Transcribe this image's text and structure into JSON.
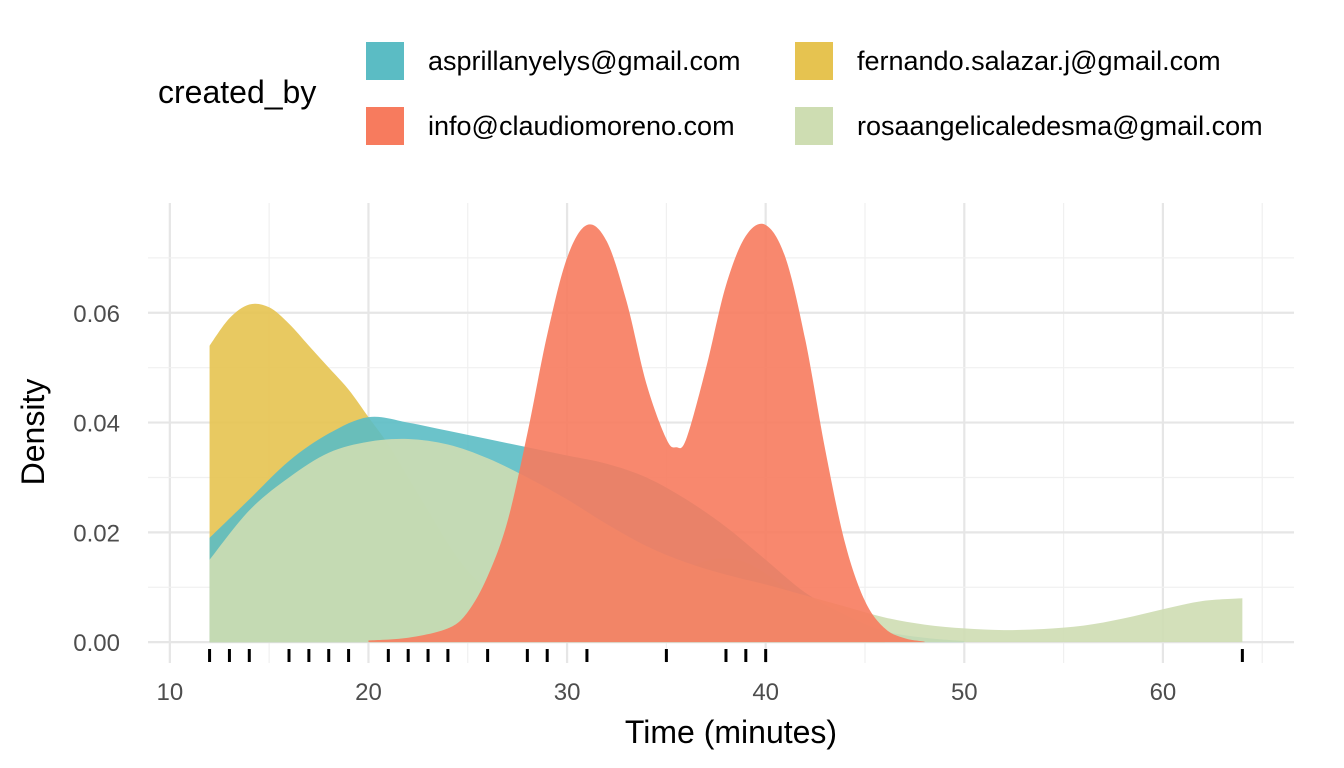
{
  "legend": {
    "title": "created_by",
    "items": [
      {
        "label": "asprillanyelys@gmail.com",
        "color": "#5BBCC4"
      },
      {
        "label": "fernando.salazar.j@gmail.com",
        "color": "#E6C350"
      },
      {
        "label": "info@claudiomoreno.com",
        "color": "#F77B5E"
      },
      {
        "label": "rosaangelicaledesma@gmail.com",
        "color": "#CEDDB2"
      }
    ]
  },
  "chart_data": {
    "type": "area",
    "xlabel": "Time (minutes)",
    "ylabel": "Density",
    "xlim": [
      8.9,
      66.6
    ],
    "ylim": [
      -0.0038,
      0.08
    ],
    "x_ticks": [
      10,
      20,
      30,
      40,
      50,
      60
    ],
    "y_ticks": [
      0.0,
      0.02,
      0.04,
      0.06
    ],
    "y_tick_labels": [
      "0.00",
      "0.02",
      "0.04",
      "0.06"
    ],
    "grid": true,
    "legend_position": "top",
    "rug": [
      12,
      13,
      14,
      16,
      17,
      18,
      19,
      21,
      22,
      23,
      24,
      26,
      28,
      29,
      31,
      35,
      38,
      39,
      40,
      64
    ],
    "series": [
      {
        "name": "fernando.salazar.j@gmail.com",
        "color": "#E6C350",
        "x": [
          12,
          13,
          14,
          15,
          16,
          17,
          18,
          19,
          20,
          21,
          22,
          23,
          24,
          25,
          26,
          27,
          28,
          29,
          30,
          31,
          32,
          33,
          34,
          35,
          36,
          37,
          38,
          39,
          40,
          41,
          42,
          43,
          44,
          45,
          46
        ],
        "y": [
          0.054,
          0.059,
          0.0615,
          0.061,
          0.058,
          0.054,
          0.05,
          0.046,
          0.041,
          0.036,
          0.03,
          0.024,
          0.018,
          0.013,
          0.0095,
          0.0068,
          0.0052,
          0.0043,
          0.0038,
          0.0038,
          0.0045,
          0.0062,
          0.0085,
          0.011,
          0.0133,
          0.0148,
          0.0153,
          0.0145,
          0.0125,
          0.0098,
          0.007,
          0.0045,
          0.0025,
          0.0012,
          0.0005
        ]
      },
      {
        "name": "asprillanyelys@gmail.com",
        "color": "#5BBCC4",
        "x": [
          12,
          14,
          16,
          18,
          20,
          22,
          24,
          26,
          28,
          30,
          32,
          34,
          36,
          38,
          40,
          42,
          44,
          46,
          48,
          50
        ],
        "y": [
          0.019,
          0.026,
          0.033,
          0.038,
          0.041,
          0.04,
          0.0385,
          0.037,
          0.0355,
          0.034,
          0.0325,
          0.03,
          0.026,
          0.021,
          0.015,
          0.009,
          0.005,
          0.002,
          0.0008,
          0.0002
        ]
      },
      {
        "name": "rosaangelicaledesma@gmail.com",
        "color": "#CEDDB2",
        "x": [
          12,
          14,
          16,
          18,
          20,
          22,
          24,
          26,
          28,
          30,
          32,
          34,
          36,
          38,
          40,
          42,
          44,
          46,
          48,
          50,
          52,
          54,
          56,
          58,
          60,
          62,
          64
        ],
        "y": [
          0.015,
          0.024,
          0.03,
          0.0345,
          0.0365,
          0.037,
          0.036,
          0.0335,
          0.03,
          0.026,
          0.0215,
          0.0175,
          0.0145,
          0.0123,
          0.0105,
          0.0085,
          0.0065,
          0.0045,
          0.0032,
          0.0025,
          0.0022,
          0.0024,
          0.003,
          0.0043,
          0.006,
          0.0075,
          0.008
        ]
      },
      {
        "name": "info@claudiomoreno.com",
        "color": "#F77B5E",
        "x": [
          20,
          22,
          24,
          25,
          26,
          27,
          28,
          29,
          30,
          31,
          32,
          33,
          34,
          35,
          35.5,
          36,
          37,
          38,
          39,
          40,
          41,
          42,
          43,
          44,
          45,
          46,
          47,
          48
        ],
        "y": [
          0.0003,
          0.0008,
          0.0025,
          0.0055,
          0.012,
          0.022,
          0.038,
          0.056,
          0.07,
          0.076,
          0.073,
          0.062,
          0.047,
          0.037,
          0.0355,
          0.037,
          0.05,
          0.065,
          0.074,
          0.076,
          0.07,
          0.055,
          0.035,
          0.018,
          0.0075,
          0.0025,
          0.0007,
          0.0001
        ]
      }
    ]
  }
}
